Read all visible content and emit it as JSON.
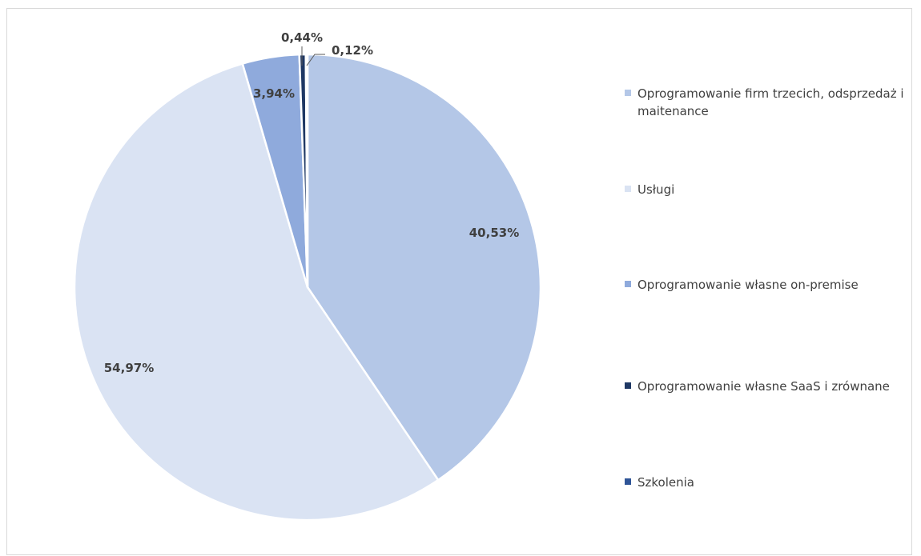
{
  "chart_data": {
    "type": "pie",
    "title": "",
    "series": [
      {
        "name": "Oprogramowanie firm trzecich, odsprzedaż i maitenance",
        "value": 40.53,
        "label": "40,53%",
        "color": "#b4c7e7"
      },
      {
        "name": "Usługi",
        "value": 54.97,
        "label": "54,97%",
        "color": "#dae3f3"
      },
      {
        "name": "Oprogramowanie własne on-premise",
        "value": 3.94,
        "label": "3,94%",
        "color": "#8faadc"
      },
      {
        "name": "Oprogramowanie własne SaaS i zrównane",
        "value": 0.44,
        "label": "0,44%",
        "color": "#1f3864"
      },
      {
        "name": "Szkolenia",
        "value": 0.12,
        "label": "0,12%",
        "color": "#2f5597"
      }
    ],
    "legend_position": "right"
  }
}
